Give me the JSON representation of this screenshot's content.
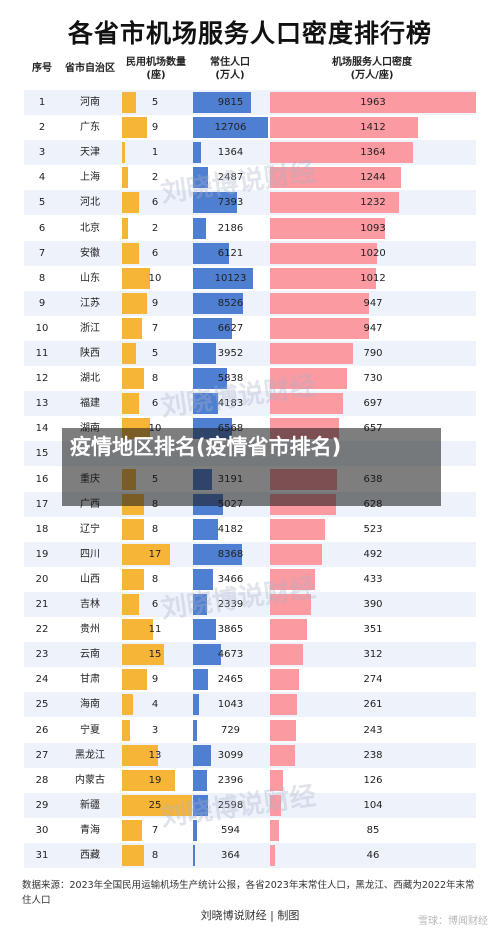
{
  "title": "各省市机场服务人口密度排行榜",
  "headers": {
    "rank": "序号",
    "province": "省市自治区",
    "airports": "民用机场数量",
    "airports_unit": "(座)",
    "population": "常住人口",
    "population_unit": "(万人)",
    "density": "机场服务人口密度",
    "density_unit": "(万人/座)"
  },
  "watermark": "刘晓博说财经",
  "overlay_text": "疫情地区排名(疫情省市排名)",
  "source_note": "数据来源：2023年全国民用运输机场生产统计公报，各省2023年末常住人口，黑龙江、西藏为2022年末常住人口",
  "footer": "刘晓博说财经 | 制图",
  "snowball": "雪球：博闻财经",
  "chart_data": {
    "type": "table",
    "columns": [
      "序号",
      "省市自治区",
      "民用机场数量(座)",
      "常住人口(万人)",
      "机场服务人口密度(万人/座)"
    ],
    "rows": [
      {
        "rank": "1",
        "province": "河南",
        "airports": 5,
        "population": 9815,
        "density": 1963
      },
      {
        "rank": "2",
        "province": "广东",
        "airports": 9,
        "population": 12706,
        "density": 1412
      },
      {
        "rank": "3",
        "province": "天津",
        "airports": 1,
        "population": 1364,
        "density": 1364
      },
      {
        "rank": "4",
        "province": "上海",
        "airports": 2,
        "population": 2487,
        "density": 1244
      },
      {
        "rank": "5",
        "province": "河北",
        "airports": 6,
        "population": 7393,
        "density": 1232
      },
      {
        "rank": "6",
        "province": "北京",
        "airports": 2,
        "population": 2186,
        "density": 1093
      },
      {
        "rank": "7",
        "province": "安徽",
        "airports": 6,
        "population": 6121,
        "density": 1020
      },
      {
        "rank": "8",
        "province": "山东",
        "airports": 10,
        "population": 10123,
        "density": 1012
      },
      {
        "rank": "9",
        "province": "江苏",
        "airports": 9,
        "population": 8526,
        "density": 947
      },
      {
        "rank": "10",
        "province": "浙江",
        "airports": 7,
        "population": 6627,
        "density": 947
      },
      {
        "rank": "11",
        "province": "陕西",
        "airports": 5,
        "population": 3952,
        "density": 790
      },
      {
        "rank": "12",
        "province": "湖北",
        "airports": 8,
        "population": 5838,
        "density": 730
      },
      {
        "rank": "13",
        "province": "福建",
        "airports": 6,
        "population": 4183,
        "density": 697
      },
      {
        "rank": "14",
        "province": "湖南",
        "airports": 10,
        "population": 6568,
        "density": 657
      },
      {
        "rank": "15",
        "province": "",
        "airports": null,
        "population": null,
        "density": null
      },
      {
        "rank": "16",
        "province": "重庆",
        "airports": 5,
        "population": 3191,
        "density": 638
      },
      {
        "rank": "17",
        "province": "广西",
        "airports": 8,
        "population": 5027,
        "density": 628
      },
      {
        "rank": "18",
        "province": "辽宁",
        "airports": 8,
        "population": 4182,
        "density": 523
      },
      {
        "rank": "19",
        "province": "四川",
        "airports": 17,
        "population": 8368,
        "density": 492
      },
      {
        "rank": "20",
        "province": "山西",
        "airports": 8,
        "population": 3466,
        "density": 433
      },
      {
        "rank": "21",
        "province": "吉林",
        "airports": 6,
        "population": 2339,
        "density": 390
      },
      {
        "rank": "22",
        "province": "贵州",
        "airports": 11,
        "population": 3865,
        "density": 351
      },
      {
        "rank": "23",
        "province": "云南",
        "airports": 15,
        "population": 4673,
        "density": 312
      },
      {
        "rank": "24",
        "province": "甘肃",
        "airports": 9,
        "population": 2465,
        "density": 274
      },
      {
        "rank": "25",
        "province": "海南",
        "airports": 4,
        "population": 1043,
        "density": 261
      },
      {
        "rank": "26",
        "province": "宁夏",
        "airports": 3,
        "population": 729,
        "density": 243
      },
      {
        "rank": "27",
        "province": "黑龙江",
        "airports": 13,
        "population": 3099,
        "density": 238
      },
      {
        "rank": "28",
        "province": "内蒙古",
        "airports": 19,
        "population": 2396,
        "density": 126
      },
      {
        "rank": "29",
        "province": "新疆",
        "airports": 25,
        "population": 2598,
        "density": 104
      },
      {
        "rank": "30",
        "province": "青海",
        "airports": 7,
        "population": 594,
        "density": 85
      },
      {
        "rank": "31",
        "province": "西藏",
        "airports": 8,
        "population": 364,
        "density": 46
      }
    ],
    "colors": {
      "airports": "#f7b538",
      "population": "#4f7fd1",
      "density": "#fb9aa0"
    }
  }
}
